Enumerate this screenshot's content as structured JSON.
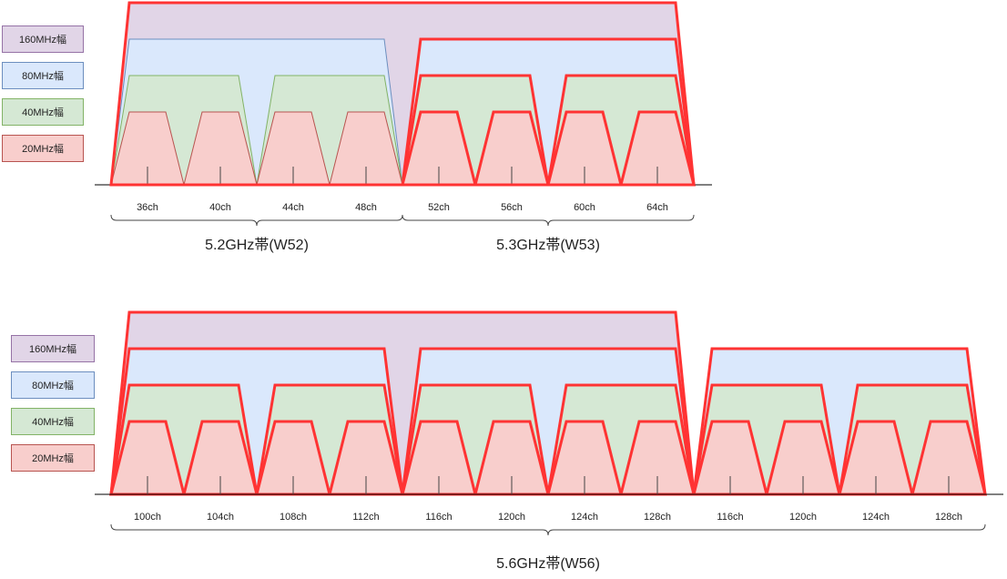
{
  "legend": {
    "w160": "160MHz幅",
    "w80": "80MHz幅",
    "w40": "40MHz幅",
    "w20": "20MHz幅"
  },
  "colors": {
    "w160_fill": "#e1d5e7",
    "w160_stroke": "#9673a6",
    "w80_fill": "#dae8fc",
    "w80_stroke": "#6c8ebf",
    "w40_fill": "#d5e8d4",
    "w40_stroke": "#82b366",
    "w20_fill": "#f8cecc",
    "w20_stroke": "#b85450",
    "highlight": "#ff3333"
  },
  "top": {
    "channels": [
      "36ch",
      "40ch",
      "44ch",
      "48ch",
      "52ch",
      "56ch",
      "60ch",
      "64ch"
    ],
    "bands": [
      "5.2GHz帯(W52)",
      "5.3GHz帯(W53)"
    ]
  },
  "bottom": {
    "channels": [
      "100ch",
      "104ch",
      "108ch",
      "112ch",
      "116ch",
      "120ch",
      "124ch",
      "128ch",
      "116ch",
      "120ch",
      "124ch",
      "128ch"
    ],
    "bands": [
      "5.6GHz帯(W56)"
    ]
  }
}
